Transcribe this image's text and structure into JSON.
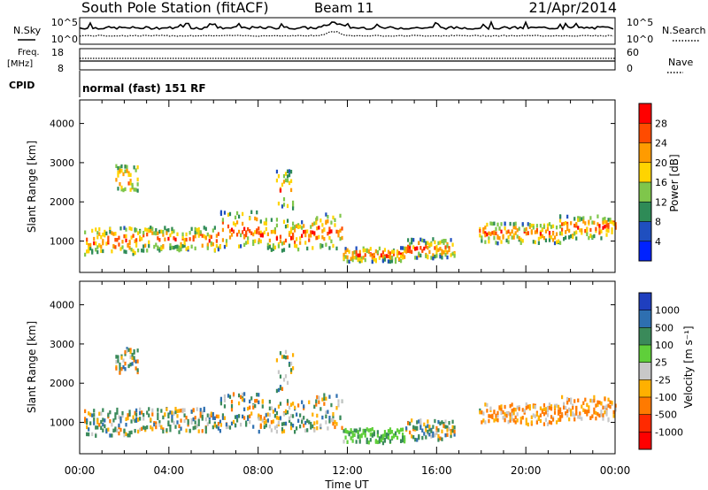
{
  "header": {
    "title": "South Pole Station (fitACF)",
    "beam": "Beam 11",
    "date": "21/Apr/2014"
  },
  "strip_panel": {
    "left_label": "N.Sky",
    "right_label": "N.Search",
    "ticks_left": [
      "10^5",
      "10^0"
    ],
    "ticks_right": [
      "10^5",
      "10^0"
    ]
  },
  "freq_panel": {
    "left_label_1": "Freq.",
    "left_label_2": "[MHz]",
    "right_label": "Nave",
    "ticks_left": [
      "18",
      "8"
    ],
    "ticks_right": [
      "60",
      "0"
    ]
  },
  "cpid_panel": {
    "left_label": "CPID",
    "mode_text": "normal (fast) 151 RF"
  },
  "chart_data": [
    {
      "type": "heatmap",
      "name": "power",
      "ylabel": "Slant Range [km]",
      "ylim": [
        200,
        4600
      ],
      "yticks": [
        "4000",
        "3000",
        "2000",
        "1000"
      ],
      "xlim": [
        "00:00",
        "24:00"
      ],
      "xtick_labels": [
        "00:00",
        "04:00",
        "08:00",
        "12:00",
        "16:00",
        "20:00",
        "00:00"
      ],
      "colorbar_label": "Power [dB]",
      "colorbar_ticks": [
        "28",
        "24",
        "20",
        "16",
        "12",
        "8",
        "4"
      ],
      "colorbar_colors": [
        "#ff0000",
        "#ff4b00",
        "#ff9b00",
        "#ffd400",
        "#7fc64b",
        "#2e8b57",
        "#1f4fbf",
        "#0022ff"
      ]
    },
    {
      "type": "heatmap",
      "name": "velocity",
      "ylabel": "Slant Range [km]",
      "ylim": [
        200,
        4600
      ],
      "yticks": [
        "4000",
        "3000",
        "2000",
        "1000"
      ],
      "xlim": [
        "00:00",
        "24:00"
      ],
      "xtick_labels": [
        "00:00",
        "04:00",
        "08:00",
        "12:00",
        "16:00",
        "20:00",
        "00:00"
      ],
      "xlabel": "Time UT",
      "colorbar_label": "Velocity [m s⁻¹]",
      "colorbar_ticks": [
        "1000",
        "500",
        "100",
        "25",
        "-25",
        "-100",
        "-500",
        "-1000"
      ],
      "colorbar_colors": [
        "#1f3fbf",
        "#2e6fb0",
        "#3a8a5a",
        "#5fcf3a",
        "#c8c8c8",
        "#ffb000",
        "#ff7a00",
        "#ff2a00",
        "#ff0000"
      ]
    }
  ]
}
